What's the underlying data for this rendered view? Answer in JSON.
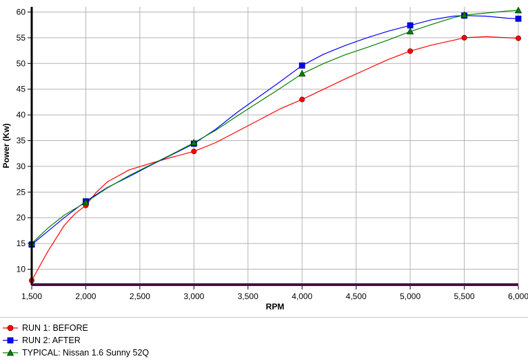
{
  "chart_data": {
    "type": "line",
    "xlabel": "RPM",
    "ylabel": "Power (Kw)",
    "xlim": [
      1500,
      6000
    ],
    "ylim": [
      7,
      61
    ],
    "x_ticks": [
      1500,
      2000,
      2500,
      3000,
      3500,
      4000,
      4500,
      5000,
      5500,
      6000
    ],
    "x_tick_labels": [
      "1,500",
      "2,000",
      "2,500",
      "3,000",
      "3,500",
      "4,000",
      "4,500",
      "5,000",
      "5,500",
      "6,000"
    ],
    "y_ticks": [
      10,
      15,
      20,
      25,
      30,
      35,
      40,
      45,
      50,
      55,
      60
    ],
    "y_tick_labels": [
      "10",
      "15",
      "20",
      "25",
      "30",
      "35",
      "40",
      "45",
      "50",
      "55",
      "60"
    ],
    "grid": true,
    "legend_position": "bottom",
    "series": [
      {
        "name": "RUN 1: BEFORE",
        "color": "#ff0000",
        "marker": "circle",
        "x": [
          1500,
          2000,
          3000,
          4000,
          5000,
          5500,
          6000
        ],
        "y": [
          7.8,
          22.4,
          32.9,
          43.0,
          52.4,
          55.0,
          54.9
        ],
        "curve": [
          [
            1500,
            7.8
          ],
          [
            1650,
            13.5
          ],
          [
            1800,
            18.5
          ],
          [
            1900,
            20.8
          ],
          [
            2000,
            22.4
          ],
          [
            2100,
            25.0
          ],
          [
            2200,
            27.0
          ],
          [
            2400,
            29.3
          ],
          [
            2600,
            30.6
          ],
          [
            2800,
            31.8
          ],
          [
            3000,
            32.9
          ],
          [
            3200,
            34.6
          ],
          [
            3400,
            36.8
          ],
          [
            3600,
            39.0
          ],
          [
            3800,
            41.2
          ],
          [
            4000,
            43.0
          ],
          [
            4200,
            45.0
          ],
          [
            4400,
            47.0
          ],
          [
            4600,
            48.9
          ],
          [
            4800,
            50.8
          ],
          [
            5000,
            52.4
          ],
          [
            5200,
            53.6
          ],
          [
            5400,
            54.5
          ],
          [
            5500,
            55.0
          ],
          [
            5700,
            55.2
          ],
          [
            5900,
            55.0
          ],
          [
            6000,
            54.9
          ]
        ]
      },
      {
        "name": "RUN 2: AFTER",
        "color": "#0000ff",
        "marker": "square",
        "x": [
          1500,
          2000,
          3000,
          4000,
          5000,
          5500,
          6000
        ],
        "y": [
          14.8,
          23.2,
          34.4,
          49.6,
          57.4,
          59.3,
          58.7
        ],
        "curve": [
          [
            1500,
            14.8
          ],
          [
            1650,
            17.4
          ],
          [
            1800,
            20.0
          ],
          [
            2000,
            23.2
          ],
          [
            2200,
            25.9
          ],
          [
            2400,
            28.0
          ],
          [
            2600,
            30.2
          ],
          [
            2800,
            32.3
          ],
          [
            3000,
            34.4
          ],
          [
            3200,
            37.2
          ],
          [
            3400,
            40.5
          ],
          [
            3600,
            43.5
          ],
          [
            3800,
            46.5
          ],
          [
            4000,
            49.6
          ],
          [
            4200,
            51.8
          ],
          [
            4400,
            53.5
          ],
          [
            4600,
            55.0
          ],
          [
            4800,
            56.3
          ],
          [
            5000,
            57.4
          ],
          [
            5200,
            58.5
          ],
          [
            5400,
            59.2
          ],
          [
            5500,
            59.3
          ],
          [
            5700,
            59.2
          ],
          [
            5900,
            58.8
          ],
          [
            6000,
            58.7
          ]
        ]
      },
      {
        "name": "TYPICAL: Nissan 1.6 Sunny 52Q",
        "color": "#008000",
        "marker": "triangle",
        "x": [
          1500,
          2000,
          3000,
          4000,
          5000,
          5500,
          6000
        ],
        "y": [
          15.0,
          23.0,
          34.6,
          48.0,
          56.2,
          59.4,
          60.3
        ],
        "curve": [
          [
            1500,
            15.0
          ],
          [
            1650,
            18.0
          ],
          [
            1800,
            20.5
          ],
          [
            2000,
            23.0
          ],
          [
            2200,
            25.8
          ],
          [
            2400,
            28.2
          ],
          [
            2600,
            30.3
          ],
          [
            2800,
            32.4
          ],
          [
            3000,
            34.6
          ],
          [
            3200,
            37.0
          ],
          [
            3400,
            39.8
          ],
          [
            3600,
            42.5
          ],
          [
            3800,
            45.2
          ],
          [
            4000,
            48.0
          ],
          [
            4200,
            50.0
          ],
          [
            4400,
            51.7
          ],
          [
            4600,
            53.1
          ],
          [
            4800,
            54.6
          ],
          [
            5000,
            56.2
          ],
          [
            5200,
            57.6
          ],
          [
            5400,
            58.9
          ],
          [
            5500,
            59.4
          ],
          [
            5700,
            59.8
          ],
          [
            5900,
            60.2
          ],
          [
            6000,
            60.3
          ]
        ]
      }
    ]
  }
}
